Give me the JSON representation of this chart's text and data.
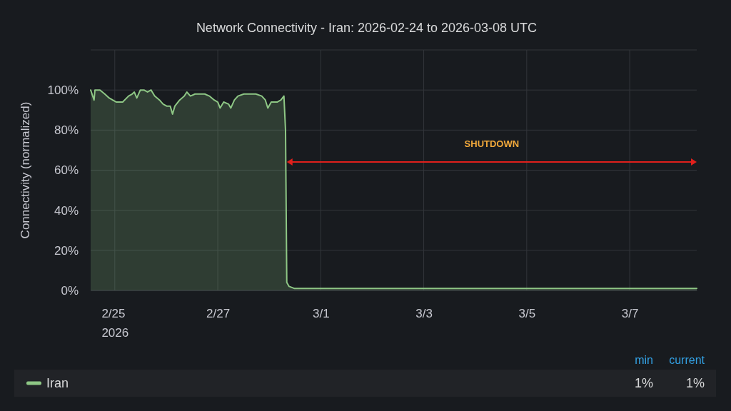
{
  "chart_data": {
    "type": "area",
    "title": "Network Connectivity - Iran: 2026-02-24 to 2026-03-08 UTC",
    "ylabel": "Connectivity (normalized)",
    "x": [
      "2026-02-24T12:45",
      "2026-02-24T14:20",
      "2026-02-24T14:45",
      "2026-02-24T17:05",
      "2026-02-24T19:20",
      "2026-02-24T21:25",
      "2026-02-25T00:45",
      "2026-02-25T03:40",
      "2026-02-25T06:25",
      "2026-02-25T08:05",
      "2026-02-25T09:05",
      "2026-02-25T10:15",
      "2026-02-25T11:55",
      "2026-02-25T13:35",
      "2026-02-25T15:15",
      "2026-02-25T16:55",
      "2026-02-25T18:35",
      "2026-02-25T20:50",
      "2026-02-25T22:30",
      "2026-02-26T00:10",
      "2026-02-26T01:50",
      "2026-02-26T02:55",
      "2026-02-26T04:00",
      "2026-02-26T06:15",
      "2026-02-26T08:25",
      "2026-02-26T09:35",
      "2026-02-26T11:15",
      "2026-02-26T13:25",
      "2026-02-26T15:40",
      "2026-02-26T17:55",
      "2026-02-26T20:05",
      "2026-02-26T22:20",
      "2026-02-27T00:00",
      "2026-02-27T01:05",
      "2026-02-27T02:45",
      "2026-02-27T05:00",
      "2026-02-27T06:05",
      "2026-02-27T07:45",
      "2026-02-27T09:25",
      "2026-02-27T12:10",
      "2026-02-27T15:00",
      "2026-02-27T17:45",
      "2026-02-27T20:30",
      "2026-02-27T22:10",
      "2026-02-27T23:20",
      "2026-02-28T00:55",
      "2026-02-28T03:40",
      "2026-02-28T05:25",
      "2026-02-28T06:50",
      "2026-02-28T07:35",
      "2026-02-28T08:10",
      "2026-02-28T09:15",
      "2026-02-28T11:35",
      "2026-02-28T18:00",
      "2026-03-01T12:00",
      "2026-03-02T12:00",
      "2026-03-03T12:00",
      "2026-03-04T12:00",
      "2026-03-05T12:00",
      "2026-03-06T12:00",
      "2026-03-07T12:00",
      "2026-03-08T07:15"
    ],
    "series": [
      {
        "name": "Iran",
        "color": "#8ec785",
        "values": [
          100,
          95,
          100,
          100,
          98,
          96,
          94,
          94,
          97,
          98,
          99,
          96,
          100,
          100,
          99,
          100,
          97,
          95,
          93,
          92,
          92,
          88,
          92,
          95,
          97,
          99,
          97,
          98,
          98,
          98,
          97,
          95,
          94,
          91,
          94,
          93,
          91,
          95,
          97,
          98,
          98,
          98,
          97,
          95,
          91,
          94,
          94,
          95,
          97,
          80,
          4,
          2,
          1,
          1,
          1,
          1,
          1,
          1,
          1,
          1,
          1,
          1
        ]
      }
    ],
    "xlim": [
      "2026-02-24T12:45",
      "2026-03-08T07:15"
    ],
    "xticks": [
      {
        "value": "2026-02-25",
        "label": "2/25\n2026"
      },
      {
        "value": "2026-02-27",
        "label": "2/27"
      },
      {
        "value": "2026-03-01",
        "label": "3/1"
      },
      {
        "value": "2026-03-03",
        "label": "3/3"
      },
      {
        "value": "2026-03-05",
        "label": "3/5"
      },
      {
        "value": "2026-03-07",
        "label": "3/7"
      }
    ],
    "ylim": [
      0,
      120
    ],
    "yticks": [
      {
        "value": 0,
        "label": "0%"
      },
      {
        "value": 20,
        "label": "20%"
      },
      {
        "value": 40,
        "label": "40%"
      },
      {
        "value": 60,
        "label": "60%"
      },
      {
        "value": 80,
        "label": "80%"
      },
      {
        "value": 100,
        "label": "100%"
      },
      {
        "value": 120,
        "label": null
      }
    ],
    "grid": true,
    "legend": "bottom",
    "annotations": [
      "SHUTDOWN",
      "min",
      "current",
      "1%",
      "1%"
    ]
  }
}
